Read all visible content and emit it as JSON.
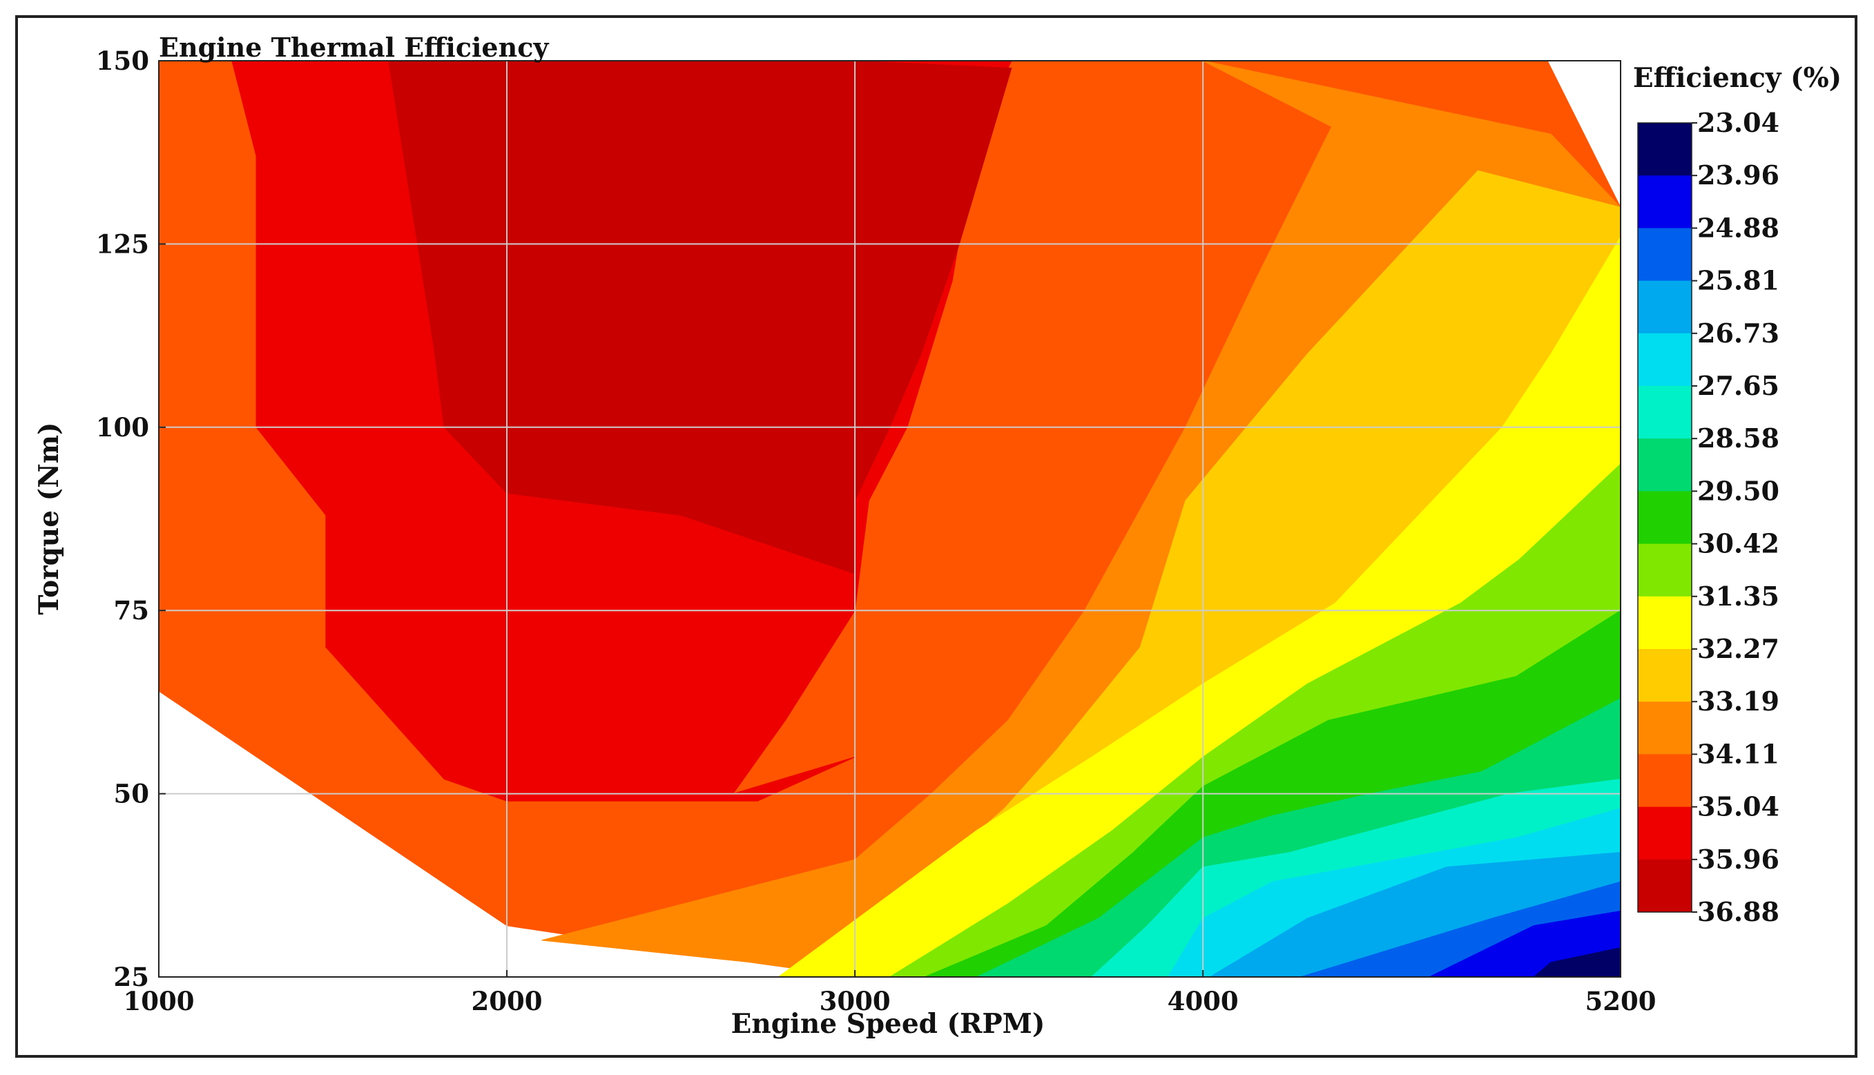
{
  "chart_data": {
    "type": "contour",
    "title": "Engine Thermal Efficiency",
    "xlabel": "Engine Speed (RPM)",
    "ylabel": "Torque (Nm)",
    "xlim": [
      1000,
      5200
    ],
    "ylim": [
      25,
      150
    ],
    "x_ticks": [
      "1000",
      "2000",
      "3000",
      "4000",
      "5200"
    ],
    "x_tick_values": [
      1000,
      2000,
      3000,
      4000,
      5200
    ],
    "y_ticks": [
      "25",
      "50",
      "75",
      "100",
      "125",
      "150"
    ],
    "y_tick_values": [
      25,
      50,
      75,
      100,
      125,
      150
    ],
    "grid": true,
    "colorbar": {
      "title": "Efficiency (%)",
      "levels": [
        "23.04",
        "23.96",
        "24.88",
        "25.81",
        "26.73",
        "27.65",
        "28.58",
        "29.50",
        "30.42",
        "31.35",
        "32.27",
        "33.19",
        "34.11",
        "35.04",
        "35.96",
        "36.88"
      ],
      "colors": [
        "#000066",
        "#0000ee",
        "#0060ee",
        "#00a8ee",
        "#00ddf0",
        "#00f0c8",
        "#00d870",
        "#20d000",
        "#80e800",
        "#ffff00",
        "#ffcc00",
        "#ff8800",
        "#ff5500",
        "#ee0000",
        "#c80000"
      ]
    },
    "regions": [
      {
        "band": "below 35.04 (outer)",
        "color": "#ff5500",
        "boundary": [
          [
            1000,
            64
          ],
          [
            1000,
            150
          ],
          [
            4990,
            150
          ],
          [
            5200,
            130
          ],
          [
            5200,
            25
          ],
          [
            3000,
            25
          ],
          [
            2700,
            27
          ],
          [
            2000,
            32
          ]
        ]
      },
      {
        "band": "33.19-34.11",
        "color": "#ff8800",
        "boundary": [
          [
            2100,
            30
          ],
          [
            2700,
            27
          ],
          [
            3000,
            25
          ],
          [
            5200,
            25
          ],
          [
            5200,
            130
          ],
          [
            5000,
            140
          ],
          [
            4000,
            150
          ],
          [
            4370,
            141
          ],
          [
            4150,
            120
          ],
          [
            3950,
            100
          ],
          [
            3660,
            75
          ],
          [
            3440,
            60
          ],
          [
            3220,
            50
          ],
          [
            3000,
            41
          ]
        ]
      },
      {
        "band": "32.27-33.19",
        "color": "#ffcc00",
        "boundary": [
          [
            3000,
            25
          ],
          [
            5200,
            25
          ],
          [
            5200,
            130
          ],
          [
            4790,
            135
          ],
          [
            4300,
            110
          ],
          [
            3950,
            90
          ],
          [
            3820,
            70
          ],
          [
            3580,
            56
          ],
          [
            3430,
            48
          ],
          [
            3000,
            30
          ]
        ]
      },
      {
        "band": "31.35-32.27",
        "color": "#ffff00",
        "boundary": [
          [
            2780,
            25
          ],
          [
            5200,
            25
          ],
          [
            5200,
            126
          ],
          [
            5000,
            110
          ],
          [
            4860,
            100
          ],
          [
            4380,
            76
          ],
          [
            4000,
            65
          ],
          [
            3680,
            55
          ],
          [
            3350,
            45
          ]
        ]
      },
      {
        "band": "30.42-31.35",
        "color": "#80e800",
        "boundary": [
          [
            3100,
            25
          ],
          [
            5200,
            25
          ],
          [
            5200,
            95
          ],
          [
            4910,
            82
          ],
          [
            4740,
            76
          ],
          [
            4300,
            65
          ],
          [
            4000,
            55
          ],
          [
            3740,
            45
          ],
          [
            3440,
            35
          ]
        ]
      },
      {
        "band": "29.50-30.42",
        "color": "#20d000",
        "boundary": [
          [
            3200,
            25
          ],
          [
            5200,
            25
          ],
          [
            5200,
            75
          ],
          [
            4900,
            66
          ],
          [
            4360,
            60
          ],
          [
            4000,
            51
          ],
          [
            3800,
            42
          ],
          [
            3550,
            32
          ]
        ]
      },
      {
        "band": "28.58-29.50",
        "color": "#00d870",
        "boundary": [
          [
            3350,
            25
          ],
          [
            5200,
            25
          ],
          [
            5200,
            63
          ],
          [
            4800,
            53
          ],
          [
            4480,
            50
          ],
          [
            4200,
            47
          ],
          [
            4000,
            44
          ],
          [
            3700,
            33
          ]
        ]
      },
      {
        "band": "27.65-28.58",
        "color": "#00f0c8",
        "boundary": [
          [
            3680,
            25
          ],
          [
            5200,
            25
          ],
          [
            5200,
            52
          ],
          [
            4880,
            50
          ],
          [
            4250,
            42
          ],
          [
            4000,
            40
          ],
          [
            3840,
            32
          ]
        ]
      },
      {
        "band": "26.73-27.65",
        "color": "#00ddf0",
        "boundary": [
          [
            3900,
            25
          ],
          [
            5200,
            25
          ],
          [
            5200,
            48
          ],
          [
            4900,
            44
          ],
          [
            4200,
            38
          ],
          [
            4000,
            33
          ]
        ]
      },
      {
        "band": "25.81-26.73",
        "color": "#00a8ee",
        "boundary": [
          [
            4020,
            25
          ],
          [
            5200,
            25
          ],
          [
            5200,
            42
          ],
          [
            4700,
            40
          ],
          [
            4300,
            33
          ]
        ]
      },
      {
        "band": "24.88-25.81",
        "color": "#0060ee",
        "boundary": [
          [
            4280,
            25
          ],
          [
            5200,
            25
          ],
          [
            5200,
            38
          ],
          [
            4830,
            33
          ]
        ]
      },
      {
        "band": "23.96-24.88",
        "color": "#0000ee",
        "boundary": [
          [
            4650,
            25
          ],
          [
            5200,
            25
          ],
          [
            5200,
            34
          ],
          [
            4950,
            32
          ]
        ]
      },
      {
        "band": "23.04-23.96",
        "color": "#000066",
        "boundary": [
          [
            4950,
            25
          ],
          [
            5200,
            25
          ],
          [
            5200,
            29
          ],
          [
            5000,
            27
          ]
        ]
      },
      {
        "band": "35.04-35.96",
        "color": "#ee0000",
        "boundary": [
          [
            1210,
            150
          ],
          [
            3450,
            150
          ],
          [
            3350,
            140
          ],
          [
            3280,
            120
          ],
          [
            3150,
            100
          ],
          [
            3040,
            90
          ],
          [
            3000,
            75
          ],
          [
            2800,
            60
          ],
          [
            2650,
            50
          ],
          [
            3000,
            55
          ],
          [
            2720,
            49
          ],
          [
            2000,
            49
          ],
          [
            1820,
            52
          ],
          [
            1480,
            70
          ],
          [
            1480,
            88
          ],
          [
            1280,
            100
          ],
          [
            1280,
            137
          ]
        ]
      },
      {
        "band": "above 35.96",
        "color": "#c80000",
        "boundary": [
          [
            1660,
            150
          ],
          [
            3000,
            150
          ],
          [
            3450,
            149
          ],
          [
            3300,
            125
          ],
          [
            3190,
            110
          ],
          [
            3100,
            100
          ],
          [
            3000,
            90
          ],
          [
            3000,
            80
          ],
          [
            2500,
            88
          ],
          [
            2000,
            91
          ],
          [
            1820,
            100
          ],
          [
            1790,
            111
          ]
        ]
      }
    ]
  }
}
